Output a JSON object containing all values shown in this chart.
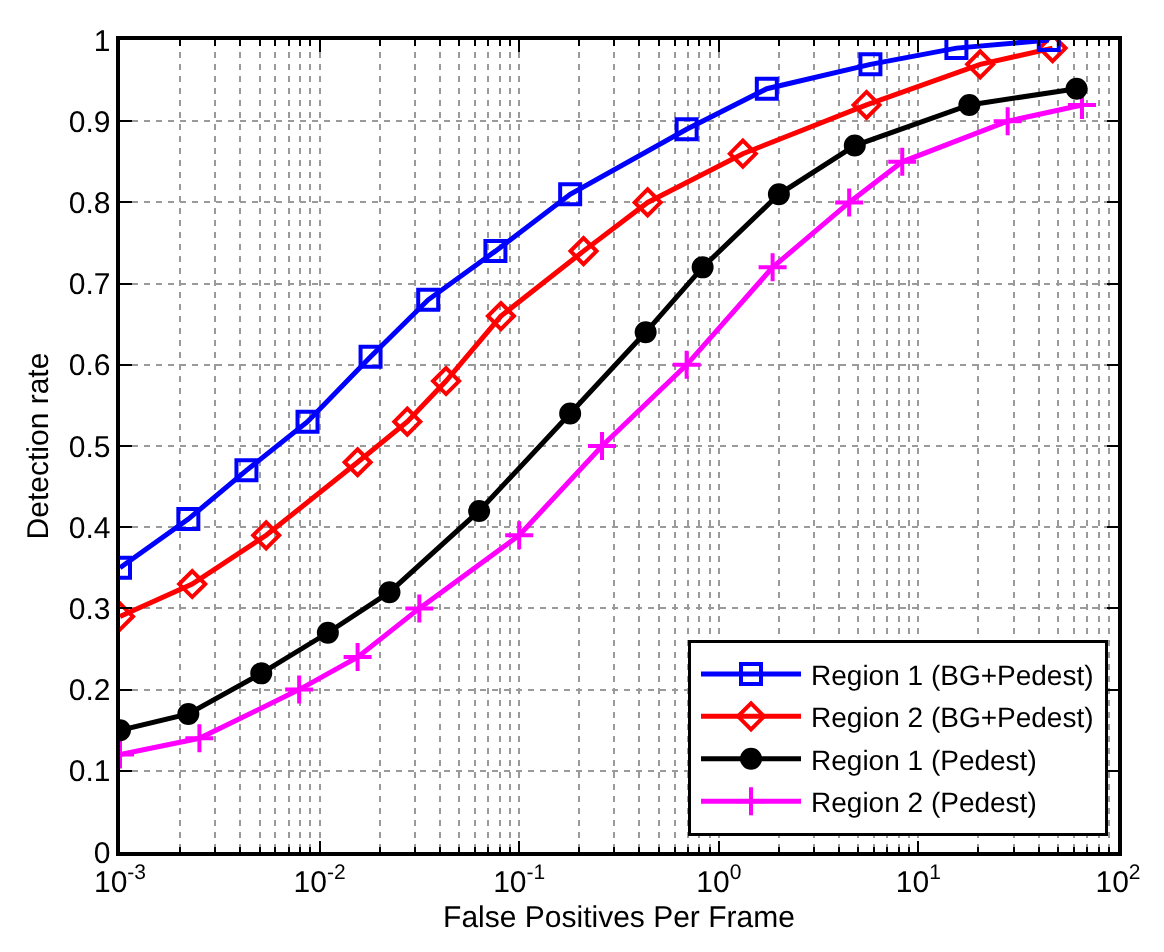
{
  "chart_data": {
    "type": "line",
    "xlabel": "False Positives Per Frame",
    "ylabel": "Detection rate",
    "log": "x",
    "grid": true,
    "legend": "bottom right",
    "line_style": "solid",
    "xlim": [
      0.001,
      100
    ],
    "xticks": [
      {
        "value": 0.001,
        "label": "10$^{-3}$"
      },
      {
        "value": 0.01,
        "label": "10$^{-2}$"
      },
      {
        "value": 0.1,
        "label": "10$^{-1}$"
      },
      {
        "value": 1,
        "label": "10$^{0}$"
      },
      {
        "value": 10,
        "label": "10$^{1}$"
      },
      {
        "value": 100,
        "label": "10$^{2}$"
      }
    ],
    "ylim": [
      0,
      1
    ],
    "yticks": [
      0,
      0.1,
      0.2,
      0.3,
      0.4,
      0.5,
      0.6,
      0.7,
      0.8,
      0.9,
      1
    ],
    "series": [
      {
        "name": "Region 1 (BG+Pedest)",
        "color": "#0000ff",
        "marker": "square",
        "x": [
          0.001,
          0.0022,
          0.0043,
          0.0087,
          0.018,
          0.035,
          0.076,
          0.18,
          0.69,
          1.74,
          5.75,
          15.5,
          45
        ],
        "values": [
          0.35,
          0.41,
          0.47,
          0.53,
          0.61,
          0.68,
          0.74,
          0.81,
          0.89,
          0.94,
          0.97,
          0.99,
          1.0
        ]
      },
      {
        "name": "Region 2 (BG+Pedest)",
        "color": "#ff0000",
        "marker": "diamond",
        "x": [
          0.001,
          0.0023,
          0.0054,
          0.0155,
          0.0275,
          0.043,
          0.081,
          0.21,
          0.44,
          1.32,
          5.5,
          20.4,
          47
        ],
        "values": [
          0.29,
          0.33,
          0.39,
          0.48,
          0.53,
          0.58,
          0.66,
          0.74,
          0.8,
          0.86,
          0.92,
          0.97,
          0.99
        ]
      },
      {
        "name": "Region 1 (Pedest)",
        "color": "#000000",
        "marker": "circle",
        "x": [
          0.001,
          0.0022,
          0.0051,
          0.011,
          0.0224,
          0.063,
          0.18,
          0.43,
          0.83,
          2.0,
          4.8,
          18,
          62
        ],
        "values": [
          0.15,
          0.17,
          0.22,
          0.27,
          0.32,
          0.42,
          0.54,
          0.64,
          0.72,
          0.81,
          0.87,
          0.92,
          0.94
        ]
      },
      {
        "name": "Region 2 (Pedest)",
        "color": "#ff00ff",
        "marker": "cross",
        "x": [
          0.001,
          0.0025,
          0.0079,
          0.0155,
          0.0316,
          0.1,
          0.26,
          0.69,
          1.86,
          4.5,
          8.3,
          28,
          66
        ],
        "values": [
          0.12,
          0.14,
          0.2,
          0.24,
          0.3,
          0.39,
          0.5,
          0.6,
          0.72,
          0.8,
          0.85,
          0.9,
          0.92
        ]
      }
    ]
  }
}
